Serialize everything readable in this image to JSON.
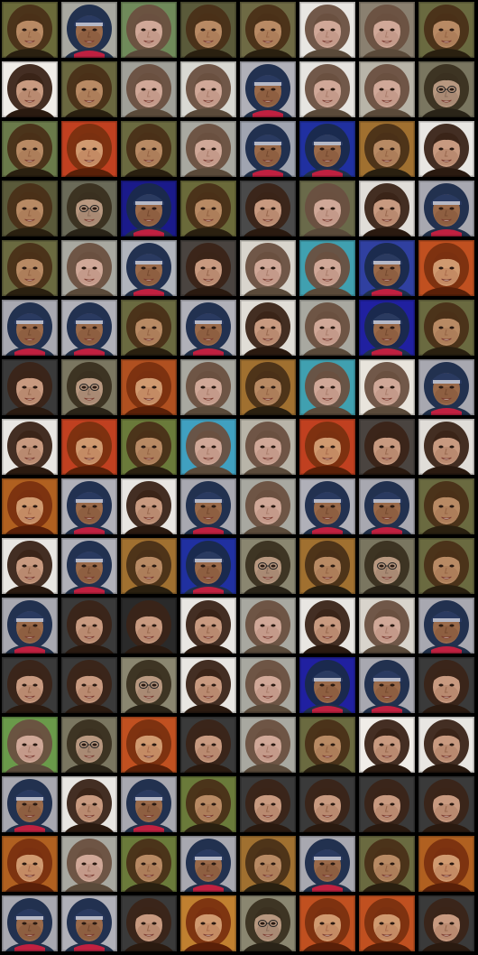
{
  "grid": {
    "rows": 16,
    "cols": 8,
    "background_color": "#000000",
    "tiles": [
      {
        "style": "A",
        "bg": "#6a6a3a"
      },
      {
        "style": "C",
        "bg": "#a8a8a0"
      },
      {
        "style": "B",
        "bg": "#6f8a5a"
      },
      {
        "style": "A",
        "bg": "#5a5a3a"
      },
      {
        "style": "A",
        "bg": "#6e6a44"
      },
      {
        "style": "B",
        "bg": "#e8e6e2"
      },
      {
        "style": "B",
        "bg": "#8a8070"
      },
      {
        "style": "A",
        "bg": "#6a6a40"
      },
      {
        "style": "D",
        "bg": "#f0ede8"
      },
      {
        "style": "A",
        "bg": "#6a6840"
      },
      {
        "style": "B",
        "bg": "#a0a098"
      },
      {
        "style": "B",
        "bg": "#d8d8d2"
      },
      {
        "style": "C",
        "bg": "#b0b0b8"
      },
      {
        "style": "B",
        "bg": "#e6e4e0"
      },
      {
        "style": "B",
        "bg": "#b8b4a8"
      },
      {
        "style": "G",
        "bg": "#7a7660"
      },
      {
        "style": "A",
        "bg": "#6a7a4a"
      },
      {
        "style": "E",
        "bg": "#c04020"
      },
      {
        "style": "A",
        "bg": "#6a6a40"
      },
      {
        "style": "B",
        "bg": "#a8a8a0"
      },
      {
        "style": "C",
        "bg": "#a0a4b0"
      },
      {
        "style": "C",
        "bg": "#2030a0"
      },
      {
        "style": "A",
        "bg": "#a07030"
      },
      {
        "style": "D",
        "bg": "#e8e6e2"
      },
      {
        "style": "A",
        "bg": "#5a5a3a"
      },
      {
        "style": "G",
        "bg": "#6a6a58"
      },
      {
        "style": "C",
        "bg": "#1a1a8a"
      },
      {
        "style": "A",
        "bg": "#6a6a3a"
      },
      {
        "style": "D",
        "bg": "#4a4a4a"
      },
      {
        "style": "B",
        "bg": "#6a6a4a"
      },
      {
        "style": "D",
        "bg": "#e0ddd8"
      },
      {
        "style": "C",
        "bg": "#a8a8b0"
      },
      {
        "style": "A",
        "bg": "#6a6a40"
      },
      {
        "style": "B",
        "bg": "#a8a8a0"
      },
      {
        "style": "C",
        "bg": "#b0b4bc"
      },
      {
        "style": "D",
        "bg": "#4a4440"
      },
      {
        "style": "B",
        "bg": "#d8d4cc"
      },
      {
        "style": "B",
        "bg": "#40a0b0"
      },
      {
        "style": "C",
        "bg": "#3040a0"
      },
      {
        "style": "E",
        "bg": "#c05020"
      },
      {
        "style": "C",
        "bg": "#a8a8b0"
      },
      {
        "style": "C",
        "bg": "#b0b0b8"
      },
      {
        "style": "A",
        "bg": "#6a6a40"
      },
      {
        "style": "C",
        "bg": "#b0b0b8"
      },
      {
        "style": "D",
        "bg": "#e0ddd6"
      },
      {
        "style": "B",
        "bg": "#a8a8a0"
      },
      {
        "style": "C",
        "bg": "#2020a0"
      },
      {
        "style": "A",
        "bg": "#6a6a40"
      },
      {
        "style": "D",
        "bg": "#3a3a3a"
      },
      {
        "style": "G",
        "bg": "#7a7660"
      },
      {
        "style": "E",
        "bg": "#b05020"
      },
      {
        "style": "B",
        "bg": "#a8a8a0"
      },
      {
        "style": "A",
        "bg": "#a07030"
      },
      {
        "style": "B",
        "bg": "#40a0b0"
      },
      {
        "style": "B",
        "bg": "#e8e4dc"
      },
      {
        "style": "C",
        "bg": "#a8a8b0"
      },
      {
        "style": "D",
        "bg": "#e8e6e2"
      },
      {
        "style": "E",
        "bg": "#c04020"
      },
      {
        "style": "A",
        "bg": "#6a7a3a"
      },
      {
        "style": "B",
        "bg": "#40a0c0"
      },
      {
        "style": "B",
        "bg": "#b8b4a8"
      },
      {
        "style": "E",
        "bg": "#c04020"
      },
      {
        "style": "D",
        "bg": "#4a4440"
      },
      {
        "style": "D",
        "bg": "#e0ddd8"
      },
      {
        "style": "E",
        "bg": "#b06020"
      },
      {
        "style": "C",
        "bg": "#b0b0b8"
      },
      {
        "style": "D",
        "bg": "#e8e6e2"
      },
      {
        "style": "C",
        "bg": "#a8a8b0"
      },
      {
        "style": "B",
        "bg": "#a8a8a0"
      },
      {
        "style": "C",
        "bg": "#b0b0b8"
      },
      {
        "style": "C",
        "bg": "#a8a8b0"
      },
      {
        "style": "A",
        "bg": "#6a6a40"
      },
      {
        "style": "D",
        "bg": "#e8e6e2"
      },
      {
        "style": "C",
        "bg": "#b0b0b8"
      },
      {
        "style": "A",
        "bg": "#a07030"
      },
      {
        "style": "C",
        "bg": "#2030a0"
      },
      {
        "style": "G",
        "bg": "#8a8670"
      },
      {
        "style": "A",
        "bg": "#a07030"
      },
      {
        "style": "G",
        "bg": "#7a7660"
      },
      {
        "style": "A",
        "bg": "#6a6a40"
      },
      {
        "style": "C",
        "bg": "#a8a8b0"
      },
      {
        "style": "D",
        "bg": "#3a3a3a"
      },
      {
        "style": "D",
        "bg": "#2a2a2a"
      },
      {
        "style": "D",
        "bg": "#e8e6e2"
      },
      {
        "style": "B",
        "bg": "#a8a8a0"
      },
      {
        "style": "D",
        "bg": "#e8e6e2"
      },
      {
        "style": "B",
        "bg": "#d8d4cc"
      },
      {
        "style": "C",
        "bg": "#a8a8b0"
      },
      {
        "style": "D",
        "bg": "#3a3a3a"
      },
      {
        "style": "D",
        "bg": "#3a3a3a"
      },
      {
        "style": "G",
        "bg": "#8a8670"
      },
      {
        "style": "D",
        "bg": "#e8e6e2"
      },
      {
        "style": "B",
        "bg": "#a8a8a0"
      },
      {
        "style": "C",
        "bg": "#2020a0"
      },
      {
        "style": "C",
        "bg": "#a8a8b0"
      },
      {
        "style": "D",
        "bg": "#3a3a3a"
      },
      {
        "style": "B",
        "bg": "#6a9a4a"
      },
      {
        "style": "G",
        "bg": "#7a7660"
      },
      {
        "style": "E",
        "bg": "#c05020"
      },
      {
        "style": "D",
        "bg": "#3a3a3a"
      },
      {
        "style": "B",
        "bg": "#a8a8a0"
      },
      {
        "style": "A",
        "bg": "#6a6a40"
      },
      {
        "style": "D",
        "bg": "#f0ede8"
      },
      {
        "style": "D",
        "bg": "#e8e6e2"
      },
      {
        "style": "C",
        "bg": "#a8a8b0"
      },
      {
        "style": "D",
        "bg": "#e8e6e2"
      },
      {
        "style": "C",
        "bg": "#a8a8b0"
      },
      {
        "style": "A",
        "bg": "#6a7a3a"
      },
      {
        "style": "D",
        "bg": "#3a3a3a"
      },
      {
        "style": "D",
        "bg": "#3a3a3a"
      },
      {
        "style": "D",
        "bg": "#3a3a3a"
      },
      {
        "style": "D",
        "bg": "#3a3a3a"
      },
      {
        "style": "E",
        "bg": "#b06020"
      },
      {
        "style": "B",
        "bg": "#a8a8a0"
      },
      {
        "style": "A",
        "bg": "#6a7a3a"
      },
      {
        "style": "C",
        "bg": "#a8a8b0"
      },
      {
        "style": "A",
        "bg": "#a07030"
      },
      {
        "style": "C",
        "bg": "#a8a8b0"
      },
      {
        "style": "A",
        "bg": "#6a6a40"
      },
      {
        "style": "E",
        "bg": "#b06020"
      },
      {
        "style": "C",
        "bg": "#a8a8b0"
      },
      {
        "style": "C",
        "bg": "#b0b0b8"
      },
      {
        "style": "D",
        "bg": "#3a3a3a"
      },
      {
        "style": "E",
        "bg": "#c08030"
      },
      {
        "style": "G",
        "bg": "#8a8670"
      },
      {
        "style": "E",
        "bg": "#c05020"
      },
      {
        "style": "E",
        "bg": "#c05020"
      },
      {
        "style": "D",
        "bg": "#3a3a3a"
      }
    ],
    "palettes": {
      "A": {
        "hair": "#4a3018",
        "skin": "#b88a64",
        "shade": "#8a5a3a",
        "top": "#2a2010"
      },
      "B": {
        "hair": "#6a5040",
        "skin": "#d0a898",
        "shade": "#a07060",
        "top": "#5a4a3a"
      },
      "C": {
        "hair": "#1a2a4a",
        "skin": "#9a6a4a",
        "shade": "#6a4028",
        "top": "#20304a",
        "cap": "#2a3a60",
        "scarf": "#c02040"
      },
      "D": {
        "hair": "#3a2418",
        "skin": "#c89a80",
        "shade": "#8a5a40",
        "top": "#2a1a10"
      },
      "E": {
        "hair": "#7a3010",
        "skin": "#d09a70",
        "shade": "#a06040",
        "top": "#5a2008"
      },
      "G": {
        "hair": "#3a3020",
        "skin": "#b89880",
        "shade": "#7a6050",
        "top": "#2a2418",
        "glasses": "#202020"
      }
    }
  }
}
